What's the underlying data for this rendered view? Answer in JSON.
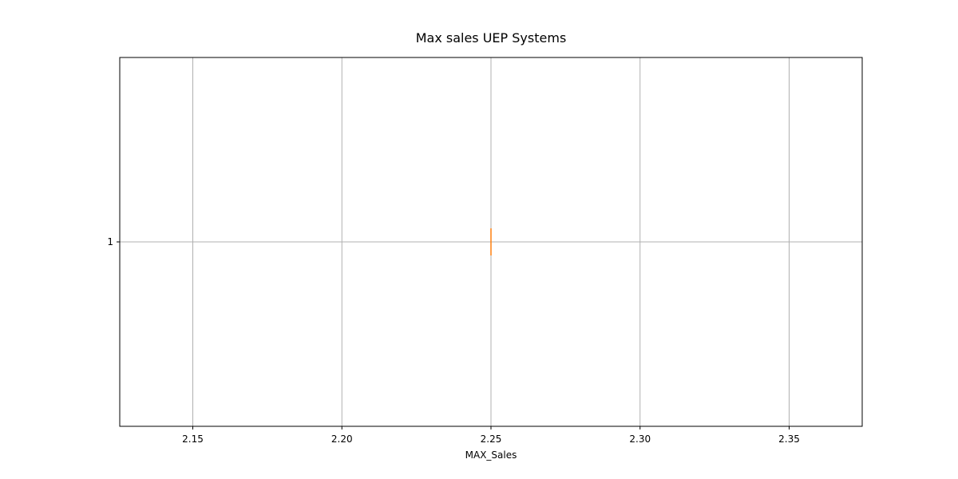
{
  "chart_data": {
    "type": "boxplot",
    "orientation": "horizontal",
    "title": "Max sales UEP Systems",
    "xlabel": "MAX_Sales",
    "ylabel": "",
    "xlim": [
      2.1255,
      2.3745
    ],
    "x_ticks": [
      2.15,
      2.2,
      2.25,
      2.3,
      2.35
    ],
    "x_tick_labels": [
      "2.15",
      "2.20",
      "2.25",
      "2.30",
      "2.35"
    ],
    "y_ticks": [
      1
    ],
    "y_tick_labels": [
      "1"
    ],
    "grid": true,
    "series": [
      {
        "position": 1,
        "min": 2.25,
        "q1": 2.25,
        "median": 2.25,
        "q3": 2.25,
        "max": 2.25
      }
    ]
  },
  "colors": {
    "box": "#000000",
    "median": "#ff7f0e",
    "grid": "#b0b0b0",
    "axes": "#000000"
  }
}
